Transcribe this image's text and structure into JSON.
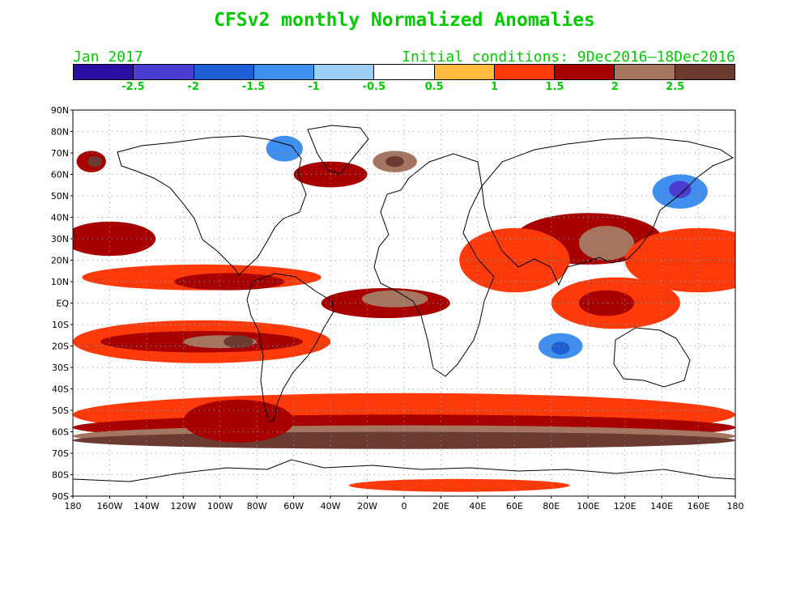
{
  "title": "CFSv2 monthly Normalized Anomalies",
  "month_label": "Jan 2017",
  "initial_conditions": "Initial conditions: 9Dec2016–18Dec2016",
  "colorbar": {
    "colors": [
      "#2b0fa3",
      "#4a3bd1",
      "#1f5fd6",
      "#3f8ff0",
      "#9ccef5",
      "#ffffff",
      "#ffbb3d",
      "#ff3a0a",
      "#a80000",
      "#a67560",
      "#6b3a30"
    ],
    "tick_labels": [
      "-2.5",
      "-2",
      "-1.5",
      "-1",
      "-0.5",
      "0.5",
      "1",
      "1.5",
      "2",
      "2.5"
    ]
  },
  "lat_labels": [
    "90N",
    "80N",
    "70N",
    "60N",
    "50N",
    "40N",
    "30N",
    "20N",
    "10N",
    "EQ",
    "10S",
    "20S",
    "30S",
    "40S",
    "50S",
    "60S",
    "70S",
    "80S",
    "90S"
  ],
  "lon_labels": [
    "180",
    "160W",
    "140W",
    "120W",
    "100W",
    "80W",
    "60W",
    "40W",
    "20W",
    "0",
    "20E",
    "40E",
    "60E",
    "80E",
    "100E",
    "120E",
    "140E",
    "160E",
    "180"
  ],
  "map_data": {
    "anomaly_regions": [
      {
        "lon": -170,
        "lat": 66,
        "rx": 8,
        "ry": 5,
        "level": 1.5
      },
      {
        "lon": -168,
        "lat": 66,
        "rx": 4,
        "ry": 2.5,
        "level": 2.5
      },
      {
        "lon": -40,
        "lat": 60,
        "rx": 20,
        "ry": 6,
        "level": 1.5
      },
      {
        "lon": -5,
        "lat": 66,
        "rx": 12,
        "ry": 5,
        "level": 2
      },
      {
        "lon": -5,
        "lat": 66,
        "rx": 5,
        "ry": 2.5,
        "level": 2.5
      },
      {
        "lon": -65,
        "lat": 72,
        "rx": 10,
        "ry": 6,
        "level": -1.5
      },
      {
        "lon": 150,
        "lat": 52,
        "rx": 15,
        "ry": 8,
        "level": -1.5
      },
      {
        "lon": 150,
        "lat": 53,
        "rx": 6,
        "ry": 4,
        "level": -2.5
      },
      {
        "lon": 85,
        "lat": -20,
        "rx": 12,
        "ry": 6,
        "level": -1.5
      },
      {
        "lon": 85,
        "lat": -21,
        "rx": 5,
        "ry": 3,
        "level": -2
      },
      {
        "lon": -50,
        "lat": 85,
        "rx": 160,
        "ry": 5,
        "level": -0.5
      },
      {
        "lon": -160,
        "lat": 30,
        "rx": 25,
        "ry": 8,
        "level": 1.5
      },
      {
        "lon": -110,
        "lat": 12,
        "rx": 65,
        "ry": 6,
        "level": 1
      },
      {
        "lon": -95,
        "lat": 10,
        "rx": 30,
        "ry": 4,
        "level": 1.5
      },
      {
        "lon": -110,
        "lat": -18,
        "rx": 70,
        "ry": 10,
        "level": 1
      },
      {
        "lon": -110,
        "lat": -18,
        "rx": 55,
        "ry": 5,
        "level": 1.5
      },
      {
        "lon": -100,
        "lat": -18,
        "rx": 20,
        "ry": 3,
        "level": 2
      },
      {
        "lon": -90,
        "lat": -18,
        "rx": 8,
        "ry": 3,
        "level": 2.5
      },
      {
        "lon": -10,
        "lat": 0,
        "rx": 35,
        "ry": 7,
        "level": 1.5
      },
      {
        "lon": -5,
        "lat": 2,
        "rx": 18,
        "ry": 4,
        "level": 2
      },
      {
        "lon": 100,
        "lat": 30,
        "rx": 40,
        "ry": 12,
        "level": 1.5
      },
      {
        "lon": 110,
        "lat": 28,
        "rx": 15,
        "ry": 8,
        "level": 2
      },
      {
        "lon": 115,
        "lat": 0,
        "rx": 35,
        "ry": 12,
        "level": 1
      },
      {
        "lon": 110,
        "lat": 0,
        "rx": 15,
        "ry": 6,
        "level": 1.5
      },
      {
        "lon": 60,
        "lat": 20,
        "rx": 30,
        "ry": 15,
        "level": 1
      },
      {
        "lon": 160,
        "lat": 20,
        "rx": 40,
        "ry": 15,
        "level": 1
      },
      {
        "lon": 0,
        "lat": -52,
        "rx": 180,
        "ry": 10,
        "level": 1
      },
      {
        "lon": 0,
        "lat": -58,
        "rx": 180,
        "ry": 6,
        "level": 1.5
      },
      {
        "lon": 0,
        "lat": -62,
        "rx": 180,
        "ry": 5,
        "level": 2
      },
      {
        "lon": 0,
        "lat": -64,
        "rx": 180,
        "ry": 4,
        "level": 2.5
      },
      {
        "lon": -90,
        "lat": -55,
        "rx": 30,
        "ry": 10,
        "level": 1.5
      },
      {
        "lon": 30,
        "lat": -85,
        "rx": 60,
        "ry": 3,
        "level": 1
      }
    ]
  }
}
